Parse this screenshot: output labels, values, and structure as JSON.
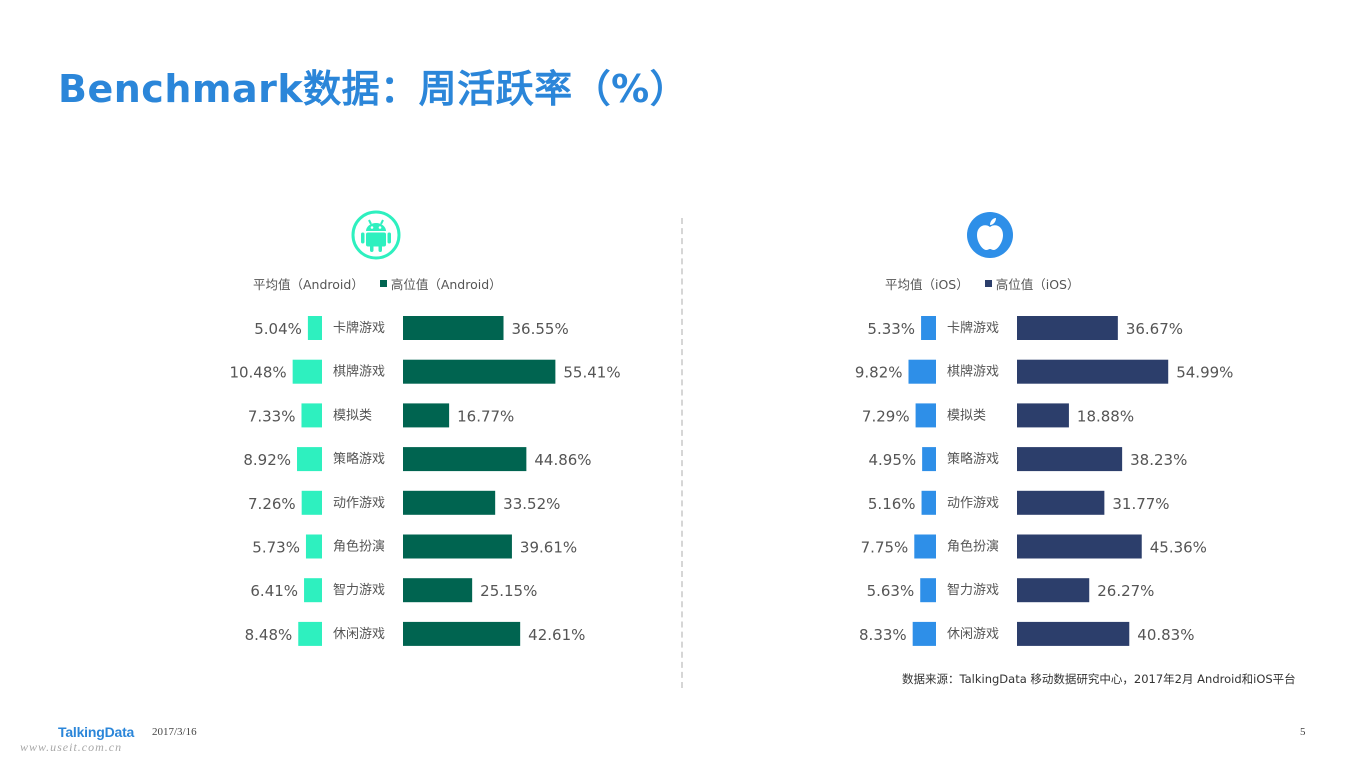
{
  "page": {
    "title": "Benchmark数据：周活跃率（%）",
    "source": "数据来源：TalkingData 移动数据研究中心，2017年2月 Android和iOS平台",
    "footer_logo": "TalkingData",
    "footer_date": "2017/3/16",
    "page_number": "5",
    "watermark": "www.useit.com.cn"
  },
  "panels": {
    "android": {
      "icon": "android-icon",
      "legend_avg": "平均值（Android）",
      "legend_high": "高位值（Android）"
    },
    "ios": {
      "icon": "apple-icon",
      "legend_avg": "平均值（iOS）",
      "legend_high": "高位值（iOS）"
    }
  },
  "colors": {
    "title": "#2b86d9",
    "android_avg": "#2ef0bf",
    "android_high": "#006450",
    "ios_avg": "#2e8fe8",
    "ios_high": "#2c3e6b"
  },
  "chart_data": [
    {
      "type": "bar",
      "orientation": "horizontal-butterfly",
      "categories": [
        "卡牌游戏",
        "棋牌游戏",
        "模拟类",
        "策略游戏",
        "动作游戏",
        "角色扮演",
        "智力游戏",
        "休闲游戏"
      ],
      "series": [
        {
          "name": "平均值（Android）",
          "values": [
            5.04,
            10.48,
            7.33,
            8.92,
            7.26,
            5.73,
            6.41,
            8.48
          ],
          "labels": [
            "5.04%",
            "10.48%",
            "7.33%",
            "8.92%",
            "7.26%",
            "5.73%",
            "6.41%",
            "8.48%"
          ]
        },
        {
          "name": "高位值（Android）",
          "values": [
            36.55,
            55.41,
            16.77,
            44.86,
            33.52,
            39.61,
            25.15,
            42.61
          ],
          "labels": [
            "36.55%",
            "55.41%",
            "16.77%",
            "44.86%",
            "33.52%",
            "39.61%",
            "25.15%",
            "42.61%"
          ]
        }
      ]
    },
    {
      "type": "bar",
      "orientation": "horizontal-butterfly",
      "categories": [
        "卡牌游戏",
        "棋牌游戏",
        "模拟类",
        "策略游戏",
        "动作游戏",
        "角色扮演",
        "智力游戏",
        "休闲游戏"
      ],
      "series": [
        {
          "name": "平均值（iOS）",
          "values": [
            5.33,
            9.82,
            7.29,
            4.95,
            5.16,
            7.75,
            5.63,
            8.33
          ],
          "labels": [
            "5.33%",
            "9.82%",
            "7.29%",
            "4.95%",
            "5.16%",
            "7.75%",
            "5.63%",
            "8.33%"
          ]
        },
        {
          "name": "高位值（iOS）",
          "values": [
            36.67,
            54.99,
            18.88,
            38.23,
            31.77,
            45.36,
            26.27,
            40.83
          ],
          "labels": [
            "36.67%",
            "54.99%",
            "18.88%",
            "38.23%",
            "31.77%",
            "45.36%",
            "26.27%",
            "40.83%"
          ]
        }
      ]
    }
  ]
}
